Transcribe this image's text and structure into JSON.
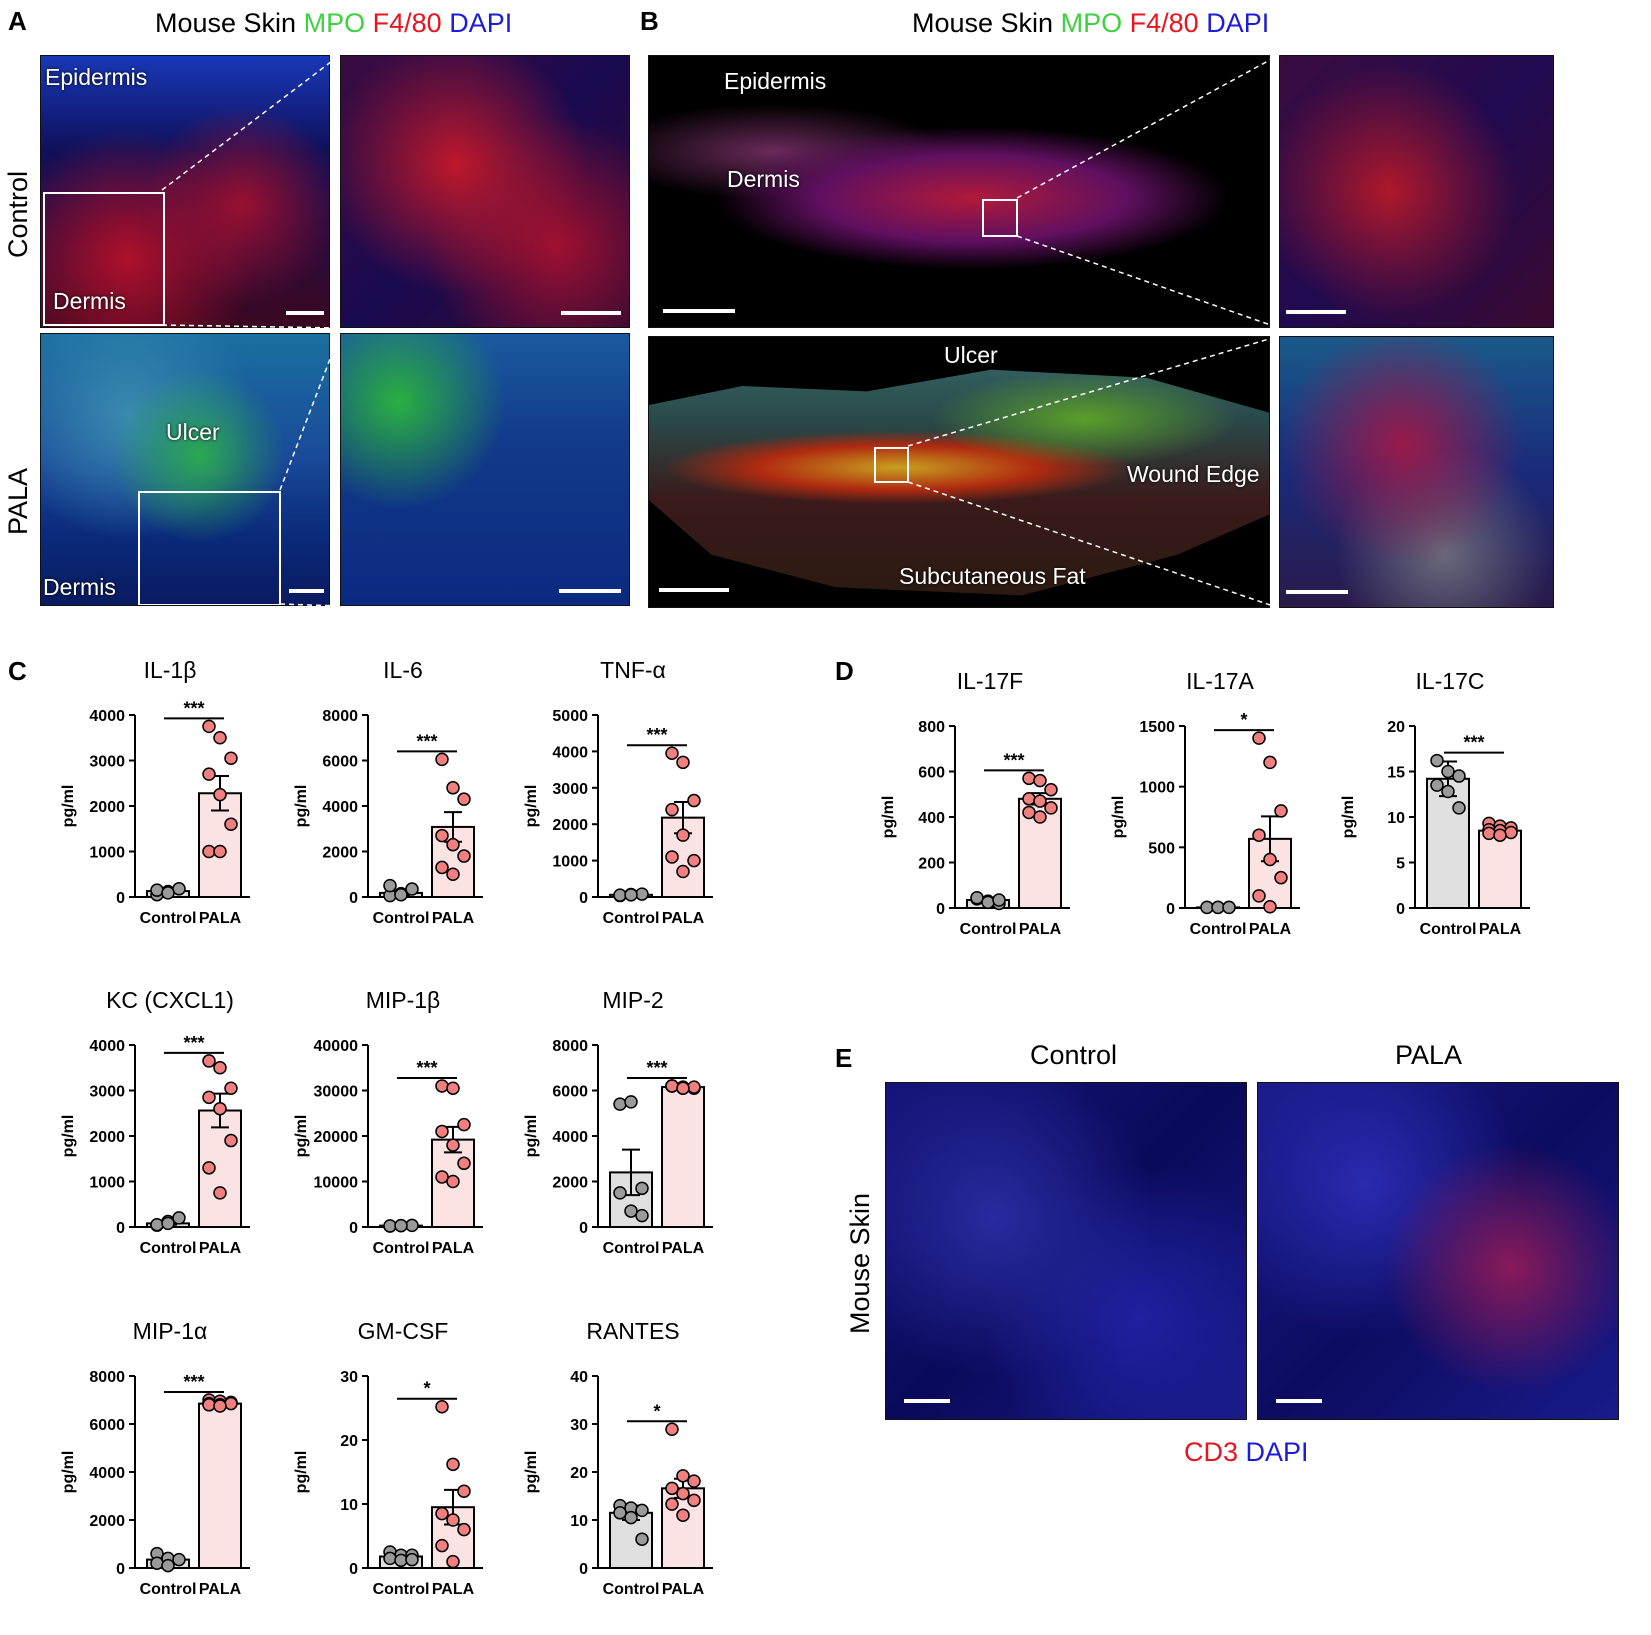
{
  "panels": {
    "A": {
      "letter": "A",
      "title": {
        "prefix": "Mouse Skin",
        "mpo": "MPO",
        "f480": "F4/80",
        "dapi": "DAPI"
      },
      "rows": [
        "Control",
        "PALA"
      ],
      "labels": {
        "epidermis": "Epidermis",
        "dermis": "Dermis",
        "ulcer": "Ulcer",
        "dermis2": "Dermis"
      }
    },
    "B": {
      "letter": "B",
      "title": {
        "prefix": "Mouse Skin",
        "mpo": "MPO",
        "f480": "F4/80",
        "dapi": "DAPI"
      },
      "labels": {
        "epidermis": "Epidermis",
        "dermis": "Dermis",
        "ulcer": "Ulcer",
        "wound_edge": "Wound Edge",
        "subcutaneous_fat": "Subcutaneous Fat"
      }
    },
    "C": {
      "letter": "C"
    },
    "D": {
      "letter": "D"
    },
    "E": {
      "letter": "E",
      "columns": [
        "Control",
        "PALA"
      ],
      "row_label": "Mouse Skin",
      "legend": {
        "cd3": "CD3",
        "dapi": "DAPI"
      }
    }
  },
  "colors": {
    "mpo": "#3fd13f",
    "f480": "#e8141e",
    "dapi": "#1c1cd8",
    "cd3": "#e8141e",
    "control_bar": "#e0e0e0",
    "pala_bar": "#fbe3e3",
    "control_dot": "#9a9a9a",
    "pala_dot": "#f08080"
  },
  "chart_data": [
    {
      "type": "bar",
      "panel": "C",
      "title": "IL-1β",
      "ylabel": "pg/ml",
      "categories": [
        "Control",
        "PALA"
      ],
      "ylim": [
        0,
        4000
      ],
      "yticks": [
        0,
        1000,
        2000,
        3000,
        4000
      ],
      "values": [
        130,
        2280
      ],
      "errors": [
        30,
        380
      ],
      "points": [
        [
          50,
          120,
          180,
          150,
          90
        ],
        [
          3750,
          3500,
          3050,
          2700,
          2250,
          1600,
          1000,
          1000
        ]
      ],
      "significance": "***"
    },
    {
      "type": "bar",
      "panel": "C",
      "title": "IL-6",
      "ylabel": "pg/ml",
      "categories": [
        "Control",
        "PALA"
      ],
      "ylim": [
        0,
        8000
      ],
      "yticks": [
        0,
        2000,
        4000,
        6000,
        8000
      ],
      "values": [
        180,
        3080
      ],
      "errors": [
        90,
        650
      ],
      "points": [
        [
          60,
          150,
          350,
          500,
          100
        ],
        [
          6050,
          4800,
          4300,
          2700,
          2300,
          1800,
          1300,
          1000
        ]
      ],
      "significance": "***"
    },
    {
      "type": "bar",
      "panel": "C",
      "title": "TNF-α",
      "ylabel": "pg/ml",
      "categories": [
        "Control",
        "PALA"
      ],
      "ylim": [
        0,
        5000
      ],
      "yticks": [
        0,
        1000,
        2000,
        3000,
        4000,
        5000
      ],
      "values": [
        60,
        2180
      ],
      "errors": [
        20,
        430
      ],
      "points": [
        [
          40,
          70,
          80,
          50,
          60
        ],
        [
          3950,
          3700,
          2650,
          2400,
          1700,
          1000,
          1100,
          700
        ]
      ],
      "significance": "***"
    },
    {
      "type": "bar",
      "panel": "C",
      "title": "KC (CXCL1)",
      "ylabel": "pg/ml",
      "categories": [
        "Control",
        "PALA"
      ],
      "ylim": [
        0,
        4000
      ],
      "yticks": [
        0,
        1000,
        2000,
        3000,
        4000
      ],
      "values": [
        80,
        2560
      ],
      "errors": [
        30,
        370
      ],
      "points": [
        [
          40,
          120,
          200,
          50,
          80
        ],
        [
          3650,
          3500,
          3050,
          2850,
          2600,
          1900,
          1300,
          750
        ]
      ],
      "significance": "***"
    },
    {
      "type": "bar",
      "panel": "C",
      "title": "MIP-1β",
      "ylabel": "pg/ml",
      "categories": [
        "Control",
        "PALA"
      ],
      "ylim": [
        0,
        40000
      ],
      "yticks": [
        0,
        10000,
        20000,
        30000,
        40000
      ],
      "values": [
        300,
        19200
      ],
      "errors": [
        100,
        2800
      ],
      "points": [
        [
          200,
          300,
          350,
          250,
          300
        ],
        [
          31000,
          30500,
          22500,
          21000,
          18000,
          14000,
          11000,
          10000
        ]
      ],
      "significance": "***"
    },
    {
      "type": "bar",
      "panel": "C",
      "title": "MIP-2",
      "ylabel": "pg/ml",
      "categories": [
        "Control",
        "PALA"
      ],
      "ylim": [
        0,
        8000
      ],
      "yticks": [
        0,
        2000,
        4000,
        6000,
        8000
      ],
      "values": [
        2400,
        6150
      ],
      "errors": [
        1000,
        60
      ],
      "points": [
        [
          5400,
          5500,
          1700,
          1500,
          700,
          500
        ],
        [
          6200,
          6150,
          6100,
          6200,
          6100,
          6150,
          6200,
          6100
        ]
      ],
      "significance": "***"
    },
    {
      "type": "bar",
      "panel": "C",
      "title": "MIP-1α",
      "ylabel": "pg/ml",
      "categories": [
        "Control",
        "PALA"
      ],
      "ylim": [
        0,
        8000
      ],
      "yticks": [
        0,
        2000,
        4000,
        6000,
        8000
      ],
      "values": [
        350,
        6850
      ],
      "errors": [
        100,
        60
      ],
      "points": [
        [
          600,
          400,
          350,
          200,
          100
        ],
        [
          7000,
          6950,
          6900,
          6850,
          6800,
          6850,
          6800,
          6750
        ]
      ],
      "significance": "***"
    },
    {
      "type": "bar",
      "panel": "C",
      "title": "GM-CSF",
      "ylabel": "pg/ml",
      "categories": [
        "Control",
        "PALA"
      ],
      "ylim": [
        0,
        30
      ],
      "yticks": [
        0,
        10,
        20,
        30
      ],
      "values": [
        1.8,
        9.5
      ],
      "errors": [
        0.4,
        2.7
      ],
      "points": [
        [
          2.5,
          2,
          2,
          1.5,
          1.2,
          1.3
        ],
        [
          25.2,
          16.2,
          12,
          8.5,
          7.5,
          6,
          3.5,
          1
        ]
      ],
      "significance": "*"
    },
    {
      "type": "bar",
      "panel": "C",
      "title": "RANTES",
      "ylabel": "pg/ml",
      "categories": [
        "Control",
        "PALA"
      ],
      "ylim": [
        0,
        40
      ],
      "yticks": [
        0,
        10,
        20,
        30,
        40
      ],
      "values": [
        11.5,
        16.6
      ],
      "errors": [
        1.5,
        2
      ],
      "points": [
        [
          13,
          12.5,
          12,
          11.5,
          10.5,
          6
        ],
        [
          28.9,
          19.2,
          18.1,
          16.6,
          15.5,
          14.1,
          13.3,
          11
        ]
      ],
      "significance": "*"
    },
    {
      "type": "bar",
      "panel": "D",
      "title": "IL-17F",
      "ylabel": "pg/ml",
      "categories": [
        "Control",
        "PALA"
      ],
      "ylim": [
        0,
        800
      ],
      "yticks": [
        0,
        200,
        400,
        600,
        800
      ],
      "values": [
        35,
        480
      ],
      "errors": [
        8,
        25
      ],
      "points": [
        [
          40,
          30,
          20,
          45,
          25,
          35
        ],
        [
          570,
          560,
          520,
          480,
          470,
          440,
          420,
          400
        ]
      ],
      "significance": "***"
    },
    {
      "type": "bar",
      "panel": "D",
      "title": "IL-17A",
      "ylabel": "pg/ml",
      "categories": [
        "Control",
        "PALA"
      ],
      "ylim": [
        0,
        1500
      ],
      "yticks": [
        0,
        500,
        1000,
        1500
      ],
      "values": [
        5,
        570
      ],
      "errors": [
        2,
        185
      ],
      "points": [
        [
          5,
          5,
          5,
          5,
          5,
          5
        ],
        [
          1400,
          1200,
          800,
          600,
          400,
          250,
          100,
          10
        ]
      ],
      "significance": "*"
    },
    {
      "type": "bar",
      "panel": "D",
      "title": "IL-17C",
      "ylabel": "pg/ml",
      "categories": [
        "Control",
        "PALA"
      ],
      "ylim": [
        0,
        20
      ],
      "yticks": [
        0,
        5,
        10,
        15,
        20
      ],
      "values": [
        14.2,
        8.5
      ],
      "errors": [
        1.9,
        0.4
      ],
      "points": [
        [
          16.2,
          15,
          14.5,
          13.5,
          12.8,
          11
        ],
        [
          9.3,
          9,
          8.8,
          8.6,
          8.5,
          8.3,
          8.2,
          8
        ]
      ],
      "significance": "***"
    }
  ]
}
